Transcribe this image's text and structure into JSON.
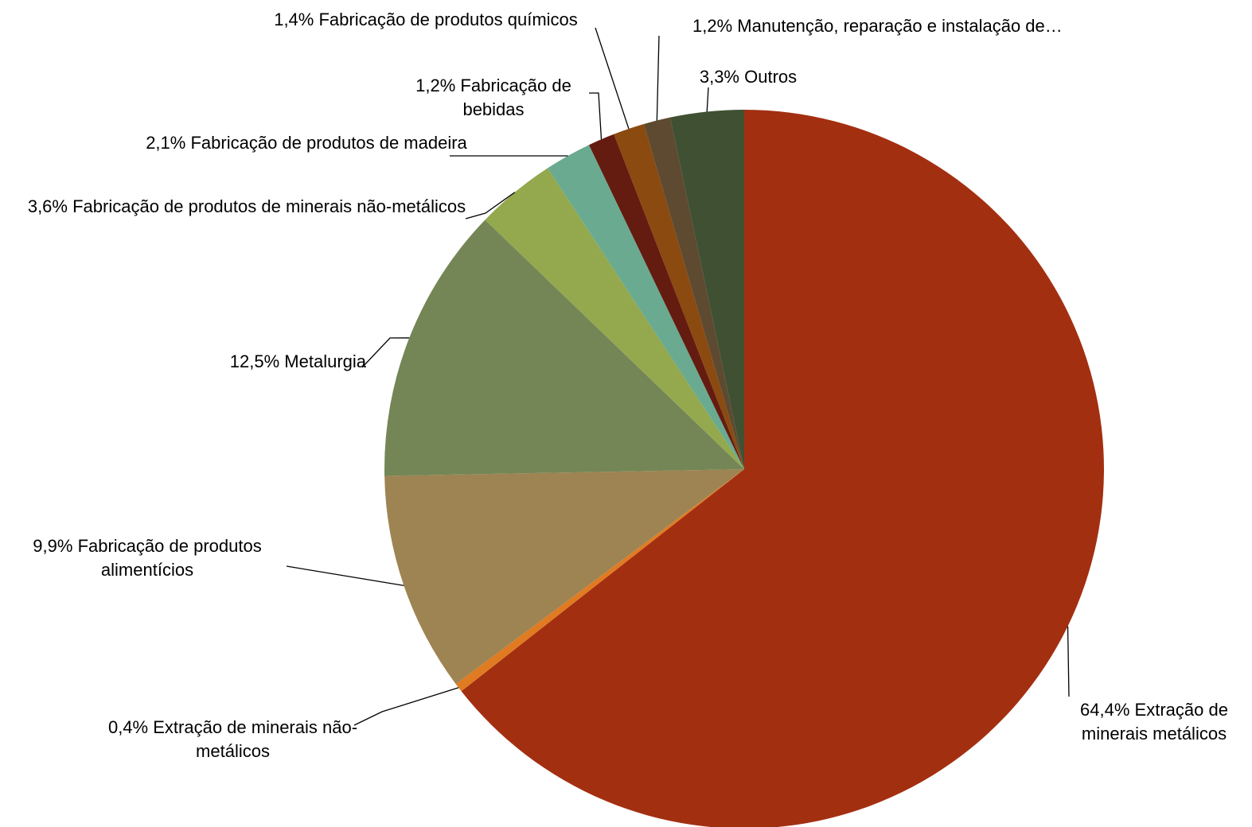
{
  "chart_data": {
    "type": "pie",
    "categories": [
      "Extração de minerais metálicos",
      "Extração de minerais não-metálicos",
      "Fabricação de produtos alimentícios",
      "Metalurgia",
      "Fabricação de produtos de minerais não-metálicos",
      "Fabricação de produtos de madeira",
      "Fabricação de bebidas",
      "Fabricação de produtos químicos",
      "Manutenção, reparação e instalação de…",
      "Outros"
    ],
    "values": [
      64.4,
      0.4,
      9.9,
      12.5,
      3.6,
      2.1,
      1.2,
      1.4,
      1.2,
      3.3
    ],
    "value_labels": [
      "64,4%",
      "0,4%",
      "9,9%",
      "12,5%",
      "3,6%",
      "2,1%",
      "1,2%",
      "1,4%",
      "1,2%",
      "3,3%"
    ],
    "colors": [
      "#a32f11",
      "#e07b22",
      "#9e8452",
      "#748656",
      "#94a84e",
      "#6aaa90",
      "#641b10",
      "#8a4a10",
      "#5e4a30",
      "#405032"
    ]
  }
}
